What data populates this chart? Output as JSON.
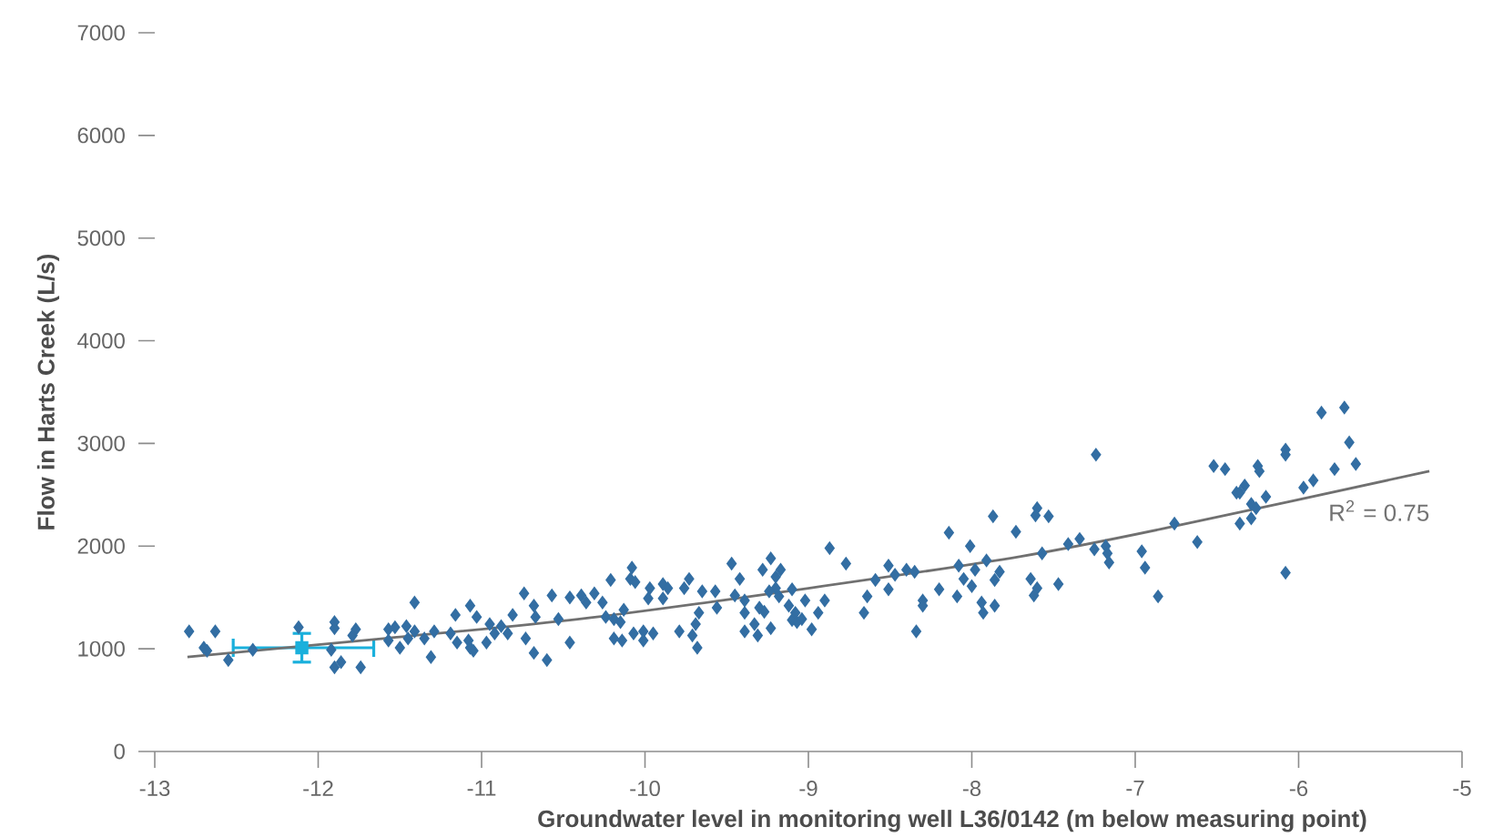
{
  "chart_data": {
    "type": "scatter",
    "xlabel": "Groundwater level in monitoring well L36/0142 (m below measuring point)",
    "ylabel": "Flow in Harts Creek (L/s)",
    "xlim": [
      -13,
      -5
    ],
    "xticks": [
      -13,
      -12,
      -11,
      -10,
      -9,
      -8,
      -7,
      -6,
      -5
    ],
    "ylim": [
      0,
      7000
    ],
    "yticks": [
      0,
      1000,
      2000,
      3000,
      4000,
      5000,
      6000,
      7000
    ],
    "marker": "diamond",
    "annotations": [
      "R$^{2}$ = 0.75"
    ],
    "series": [
      {
        "color": "#336ea3",
        "x": [
          -12.79,
          -12.7,
          -12.68,
          -12.63,
          -12.55,
          -12.4,
          -12.12,
          -11.92,
          -11.9,
          -11.9,
          -11.9,
          -11.86,
          -11.79,
          -11.77,
          -11.74,
          -11.57,
          -11.57,
          -11.53,
          -11.5,
          -11.46,
          -11.45,
          -11.41,
          -11.41,
          -11.35,
          -11.31,
          -11.29,
          -11.19,
          -11.16,
          -11.15,
          -11.08,
          -11.07,
          -11.07,
          -11.05,
          -11.03,
          -10.97,
          -10.95,
          -10.92,
          -10.88,
          -10.84,
          -10.81,
          -10.74,
          -10.73,
          -10.68,
          -10.68,
          -10.67,
          -10.6,
          -10.57,
          -10.53,
          -10.46,
          -10.46,
          -10.39,
          -10.36,
          -10.31,
          -10.26,
          -10.21,
          -10.24,
          -10.19,
          -10.19,
          -10.15,
          -10.14,
          -10.13,
          -10.08,
          -10.09,
          -10.06,
          -10.07,
          -10.01,
          -10.01,
          -9.98,
          -9.97,
          -9.95,
          -9.89,
          -9.86,
          -9.89,
          -9.79,
          -9.76,
          -9.73,
          -9.71,
          -9.69,
          -9.68,
          -9.67,
          -9.65,
          -9.57,
          -9.56,
          -9.47,
          -9.45,
          -9.42,
          -9.39,
          -9.39,
          -9.39,
          -9.33,
          -9.31,
          -9.3,
          -9.28,
          -9.27,
          -9.24,
          -9.23,
          -9.23,
          -9.2,
          -9.2,
          -9.17,
          -9.18,
          -9.12,
          -9.1,
          -9.1,
          -9.08,
          -9.07,
          -9.04,
          -9.02,
          -8.98,
          -8.94,
          -8.9,
          -8.87,
          -8.77,
          -8.66,
          -8.64,
          -8.59,
          -8.51,
          -8.51,
          -8.47,
          -8.4,
          -8.35,
          -8.34,
          -8.3,
          -8.3,
          -8.2,
          -8.14,
          -8.09,
          -8.08,
          -8.05,
          -8.01,
          -8.0,
          -7.98,
          -7.94,
          -7.93,
          -7.91,
          -7.87,
          -7.86,
          -7.86,
          -7.83,
          -7.73,
          -7.6,
          -7.61,
          -7.53,
          -7.64,
          -7.6,
          -7.62,
          -7.57,
          -7.47,
          -7.41,
          -7.34,
          -7.24,
          -7.25,
          -7.18,
          -7.17,
          -7.16,
          -6.96,
          -6.94,
          -6.86,
          -6.76,
          -6.62,
          -6.52,
          -6.45,
          -6.38,
          -6.36,
          -6.33,
          -6.36,
          -6.29,
          -6.26,
          -6.29,
          -6.25,
          -6.24,
          -6.2,
          -6.08,
          -6.08,
          -6.08,
          -5.97,
          -5.91,
          -5.86,
          -5.78,
          -5.72,
          -5.69,
          -5.65
        ],
        "values": [
          1170,
          1010,
          980,
          1170,
          890,
          990,
          1210,
          990,
          1260,
          1200,
          820,
          870,
          1130,
          1190,
          820,
          1190,
          1080,
          1210,
          1010,
          1220,
          1100,
          1450,
          1170,
          1100,
          920,
          1170,
          1150,
          1330,
          1060,
          1080,
          1420,
          1010,
          980,
          1310,
          1060,
          1240,
          1150,
          1220,
          1150,
          1330,
          1540,
          1100,
          1420,
          960,
          1310,
          890,
          1520,
          1290,
          1500,
          1060,
          1520,
          1450,
          1540,
          1450,
          1670,
          1310,
          1290,
          1100,
          1260,
          1080,
          1380,
          1790,
          1680,
          1650,
          1150,
          1170,
          1080,
          1490,
          1590,
          1150,
          1630,
          1590,
          1490,
          1170,
          1590,
          1680,
          1130,
          1240,
          1010,
          1350,
          1560,
          1560,
          1400,
          1830,
          1520,
          1680,
          1350,
          1470,
          1170,
          1240,
          1130,
          1400,
          1770,
          1360,
          1560,
          1880,
          1200,
          1700,
          1590,
          1770,
          1510,
          1420,
          1580,
          1280,
          1350,
          1260,
          1290,
          1470,
          1190,
          1350,
          1470,
          1980,
          1830,
          1350,
          1510,
          1670,
          1810,
          1580,
          1720,
          1770,
          1750,
          1170,
          1470,
          1420,
          1580,
          2130,
          1510,
          1810,
          1680,
          2000,
          1610,
          1770,
          1450,
          1350,
          1860,
          2290,
          1420,
          1670,
          1750,
          2140,
          2370,
          2300,
          2290,
          1680,
          1590,
          1520,
          1930,
          1630,
          2020,
          2070,
          2890,
          1970,
          2000,
          1930,
          1840,
          1950,
          1790,
          1510,
          2220,
          2040,
          2780,
          2750,
          2520,
          2520,
          2590,
          2220,
          2410,
          2370,
          2270,
          2780,
          2730,
          2480,
          2940,
          2890,
          1740,
          2570,
          2640,
          3300,
          2750,
          3350,
          3010,
          2800
        ]
      },
      {
        "color": "#1ab0dc",
        "marker": "square",
        "x": [
          -12.1
        ],
        "values": [
          1010
        ],
        "xerrors": [
          [
            -12.52,
            -11.66
          ]
        ],
        "errors": [
          [
            870,
            1150
          ]
        ]
      },
      {
        "type": "line",
        "color": "#707070",
        "line_style": "solid",
        "marker": "none",
        "x": [
          -12.8,
          -11.6,
          -10.4,
          -9.0,
          -7.7,
          -6.8,
          -5.2
        ],
        "values": [
          920,
          1100,
          1290,
          1590,
          1900,
          2180,
          2730
        ]
      }
    ]
  }
}
